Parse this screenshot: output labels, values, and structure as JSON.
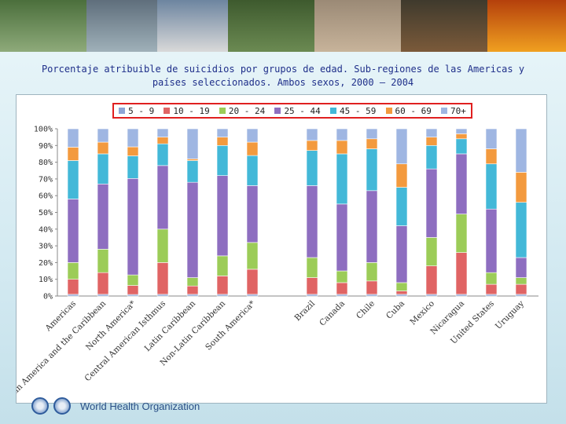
{
  "title": "Porcentaje atribuible de suicidios por grupos de edad. Sub-regiones de las Americas y países seleccionados. Ambos sexos, 2000 – 2004",
  "footer": {
    "organization": "World Health Organization"
  },
  "colors": {
    "c1": "#8da5d6",
    "c2": "#e06464",
    "c3": "#9ccc58",
    "c4": "#8e6ec0",
    "c5": "#43b8d8",
    "c6": "#f39a3e",
    "c7": "#9fb6e2"
  },
  "chart_data": {
    "type": "bar",
    "stacked": true,
    "series": [
      {
        "name": "5 - 9"
      },
      {
        "name": "10 - 19"
      },
      {
        "name": "20 - 24"
      },
      {
        "name": "25 - 44"
      },
      {
        "name": "45 - 59"
      },
      {
        "name": "60 - 69"
      },
      {
        "name": "70+"
      }
    ],
    "y_tick_labels": [
      "0%",
      "10%",
      "20%",
      "30%",
      "40%",
      "50%",
      "60%",
      "70%",
      "80%",
      "90%",
      "100%"
    ],
    "ylim": [
      0,
      100
    ],
    "legend": "top",
    "grid": false,
    "groups": [
      {
        "categories": [
          "Americas",
          "Latin America and the Caribbean",
          "North America*",
          "Central American Isthmus",
          "Latin Caribbean",
          "Non-Latin Caribbean",
          "South America*"
        ],
        "values": [
          [
            1,
            9,
            10,
            38,
            23,
            8,
            11
          ],
          [
            1,
            13,
            14,
            39,
            18,
            7,
            8
          ],
          [
            1,
            6,
            7,
            64,
            15,
            6,
            12
          ],
          [
            1,
            19,
            20,
            38,
            13,
            4,
            5
          ],
          [
            1,
            5,
            5,
            57,
            13,
            1,
            18
          ],
          [
            1,
            11,
            12,
            48,
            18,
            5,
            5
          ],
          [
            1,
            15,
            16,
            34,
            18,
            8,
            8
          ]
        ]
      },
      {
        "categories": [
          "Brazil",
          "Canada",
          "Chile",
          "Cuba",
          "Mexico",
          "Nicaragua",
          "United States",
          "Uruguay"
        ],
        "values": [
          [
            1,
            10,
            12,
            43,
            21,
            6,
            7
          ],
          [
            1,
            7,
            7,
            40,
            30,
            8,
            7
          ],
          [
            1,
            8,
            11,
            43,
            25,
            6,
            6
          ],
          [
            1,
            2,
            5,
            34,
            23,
            14,
            21
          ],
          [
            1,
            17,
            17,
            41,
            14,
            5,
            5
          ],
          [
            1,
            25,
            23,
            36,
            9,
            3,
            3
          ],
          [
            1,
            6,
            7,
            38,
            27,
            9,
            12
          ],
          [
            1,
            6,
            4,
            12,
            33,
            18,
            26
          ]
        ]
      }
    ]
  }
}
